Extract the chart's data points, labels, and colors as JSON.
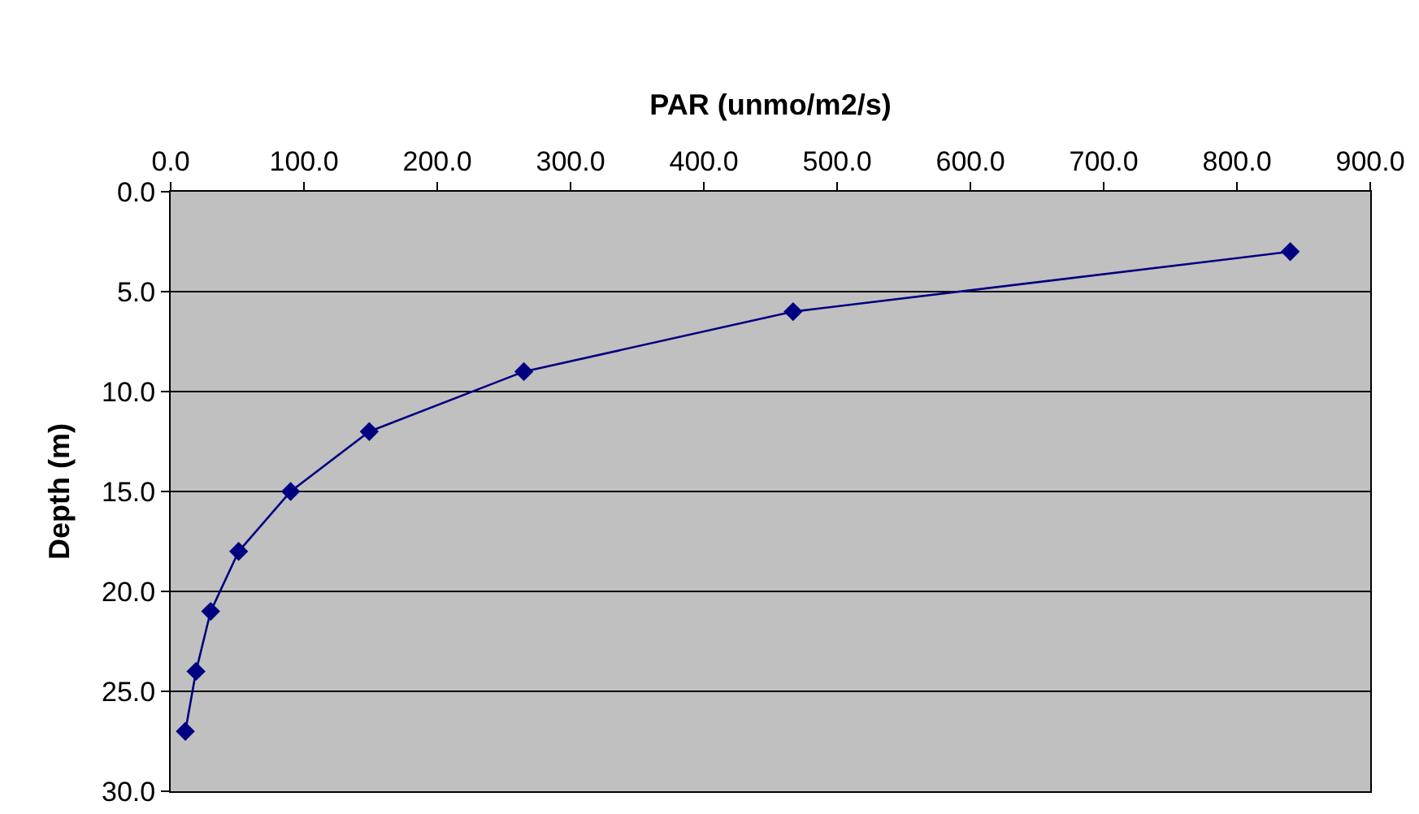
{
  "chart_data": {
    "type": "line",
    "xlabel": "PAR (unmo/m2/s)",
    "ylabel": "Depth (m)",
    "x": [
      840,
      467,
      265,
      149,
      90,
      51,
      30,
      19,
      11
    ],
    "series": [
      {
        "color": "#000080",
        "values": [
          3,
          6,
          9,
          12,
          15,
          18,
          21,
          24,
          27
        ]
      }
    ],
    "xlim": [
      0,
      900
    ],
    "xticks": [
      {
        "value": 0,
        "label": "0.0"
      },
      {
        "value": 100,
        "label": "100.0"
      },
      {
        "value": 200,
        "label": "200.0"
      },
      {
        "value": 300,
        "label": "300.0"
      },
      {
        "value": 400,
        "label": "400.0"
      },
      {
        "value": 500,
        "label": "500.0"
      },
      {
        "value": 600,
        "label": "600.0"
      },
      {
        "value": 700,
        "label": "700.0"
      },
      {
        "value": 800,
        "label": "800.0"
      },
      {
        "value": 900,
        "label": "900.0"
      }
    ],
    "ylim": [
      30,
      0
    ],
    "yticks": [
      {
        "value": 0,
        "label": "0.0"
      },
      {
        "value": 5,
        "label": "5.0"
      },
      {
        "value": 10,
        "label": "10.0"
      },
      {
        "value": 15,
        "label": "15.0"
      },
      {
        "value": 20,
        "label": "20.0"
      },
      {
        "value": 25,
        "label": "25.0"
      },
      {
        "value": 30,
        "label": "30.0"
      }
    ],
    "grid": "y",
    "marker": "diamond",
    "line_style": "solid"
  }
}
